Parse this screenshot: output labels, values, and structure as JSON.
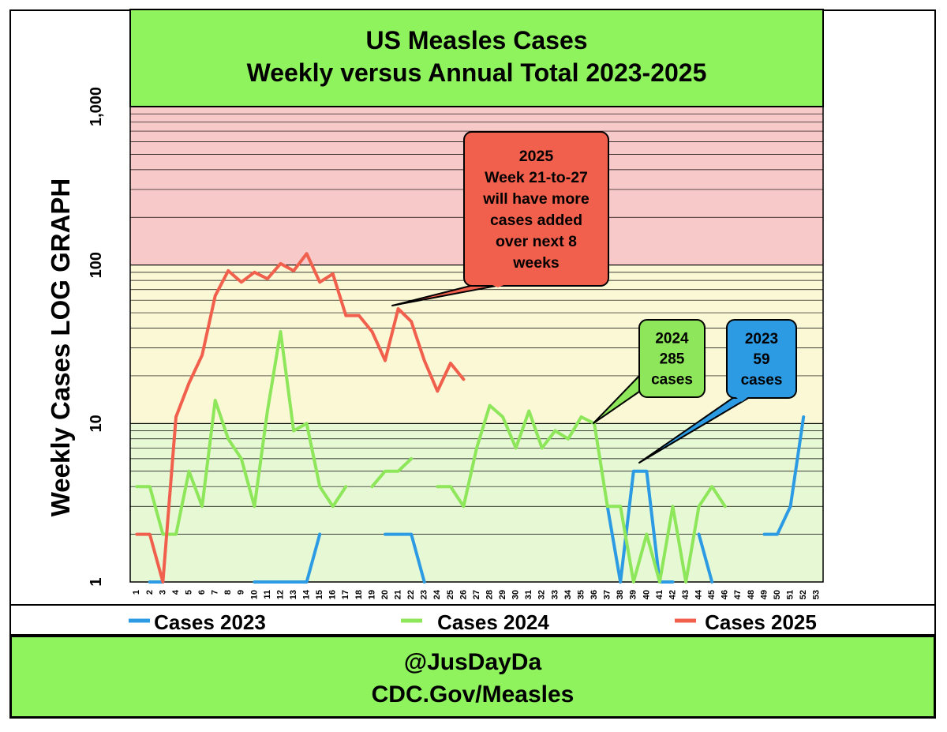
{
  "chart_data": {
    "type": "line",
    "title_lines": [
      "US Measles Cases",
      "Weekly versus Annual Total 2023-2025"
    ],
    "ylabel": "Weekly Cases LOG GRAPH",
    "y_scale": "log",
    "ylim": [
      1,
      1000
    ],
    "y_tick_labels": [
      "1",
      "10",
      "100",
      "1,000"
    ],
    "y_tick_values": [
      1,
      10,
      100,
      1000
    ],
    "categories": [
      "1",
      "2",
      "3",
      "4",
      "5",
      "6",
      "7",
      "8",
      "9",
      "10",
      "11",
      "12",
      "13",
      "14",
      "15",
      "16",
      "17",
      "18",
      "19",
      "20",
      "21",
      "22",
      "23",
      "24",
      "25",
      "26",
      "27",
      "28",
      "29",
      "30",
      "31",
      "32",
      "33",
      "34",
      "35",
      "36",
      "37",
      "38",
      "39",
      "40",
      "41",
      "42",
      "43",
      "44",
      "45",
      "46",
      "47",
      "48",
      "49",
      "50",
      "51",
      "52",
      "53"
    ],
    "bands": [
      {
        "from": 1,
        "to": 10,
        "color": "#e6f9d4"
      },
      {
        "from": 10,
        "to": 100,
        "color": "#fbf8d6"
      },
      {
        "from": 100,
        "to": 1000,
        "color": "#f8c9c9"
      }
    ],
    "grid": true,
    "series": [
      {
        "name": "Cases 2023",
        "color": "#2c9be4",
        "values": [
          null,
          1,
          1,
          null,
          null,
          null,
          null,
          null,
          null,
          1,
          1,
          1,
          1,
          1,
          2,
          null,
          null,
          null,
          null,
          2,
          2,
          2,
          1,
          null,
          null,
          null,
          null,
          null,
          null,
          null,
          null,
          null,
          null,
          null,
          null,
          null,
          3,
          1,
          5,
          5,
          1,
          1,
          null,
          2,
          1,
          null,
          null,
          null,
          2,
          2,
          3,
          11,
          null
        ]
      },
      {
        "name": "Cases 2024",
        "color": "#8ee65a",
        "values": [
          4,
          4,
          2,
          2,
          5,
          3,
          14,
          8,
          6,
          3,
          12,
          38,
          9,
          10,
          4,
          3,
          4,
          null,
          4,
          5,
          5,
          6,
          null,
          4,
          4,
          3,
          7,
          13,
          11,
          7,
          12,
          7,
          9,
          8,
          11,
          10,
          3,
          3,
          1,
          2,
          1,
          3,
          1,
          3,
          4,
          3,
          null,
          null,
          null,
          null,
          null,
          null,
          1
        ]
      },
      {
        "name": "Cases 2025",
        "color": "#f1604c",
        "values": [
          2,
          2,
          1,
          11,
          18,
          27,
          64,
          92,
          78,
          90,
          82,
          102,
          92,
          118,
          78,
          88,
          48,
          48,
          38,
          25,
          53,
          44,
          25,
          16,
          24,
          19,
          null,
          null,
          null,
          null,
          null,
          null,
          null,
          null,
          null,
          null,
          null,
          null,
          null,
          null,
          null,
          null,
          null,
          null,
          null,
          null,
          null,
          null,
          null,
          null,
          null,
          null,
          null
        ]
      }
    ],
    "legend": {
      "position": "bottom",
      "entries": [
        "Cases 2023",
        "Cases 2024",
        "Cases 2025"
      ]
    },
    "annotations": [
      {
        "id": "a2025",
        "lines": [
          "2025",
          "Week 21-to-27",
          "will have more",
          "cases added",
          "over next 8",
          "weeks"
        ],
        "color": "#f1604c"
      },
      {
        "id": "a2024",
        "lines": [
          "2024",
          "285",
          "cases"
        ],
        "color": "#8ee65a"
      },
      {
        "id": "a2023",
        "lines": [
          "2023",
          "59",
          "cases"
        ],
        "color": "#2c9be4"
      }
    ],
    "footer_lines": [
      "@JusDayDa",
      "CDC.Gov/Measles"
    ],
    "accent_green": "#8ef35d"
  }
}
